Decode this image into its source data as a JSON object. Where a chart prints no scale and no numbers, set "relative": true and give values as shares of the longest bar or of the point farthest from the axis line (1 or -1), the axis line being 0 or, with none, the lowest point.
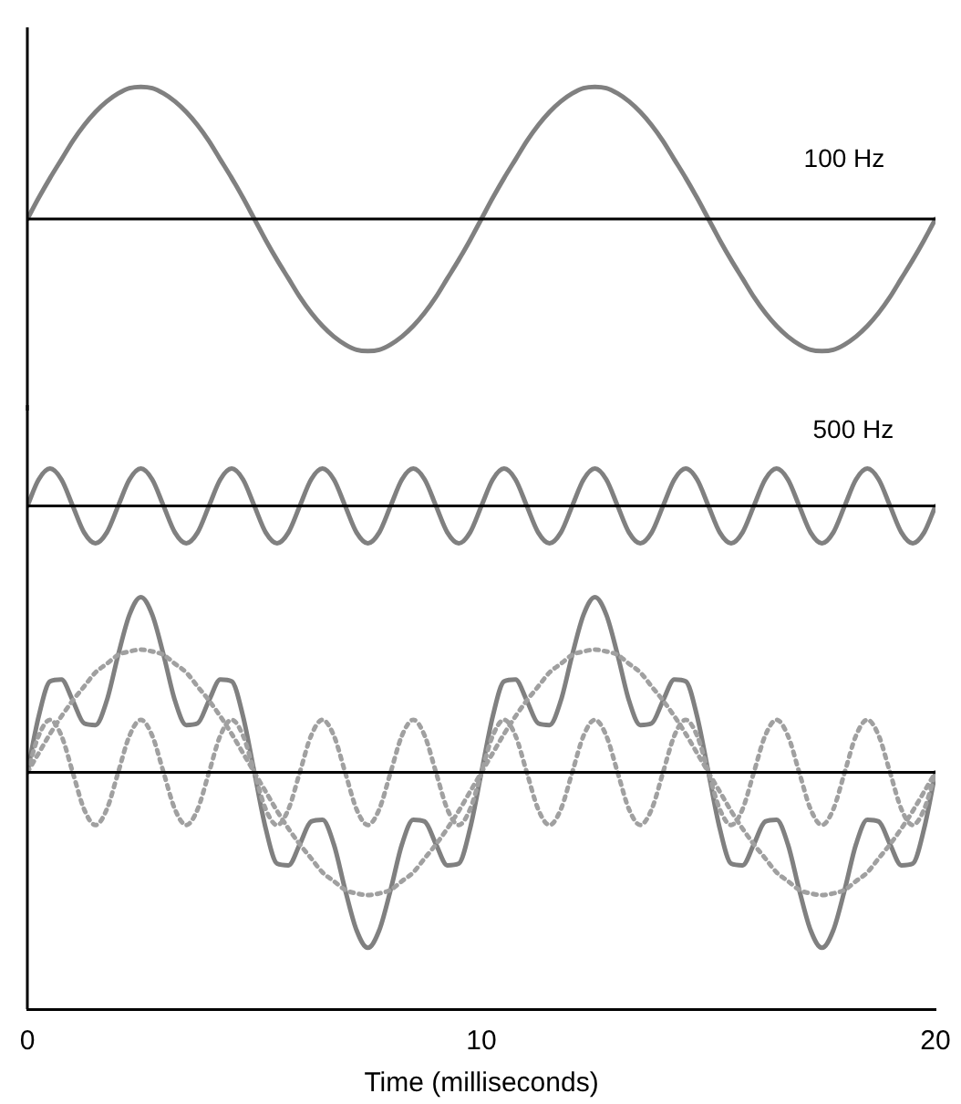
{
  "chart_data": [
    {
      "type": "line",
      "relative": true,
      "marker": "none",
      "tick_labels": false,
      "xlim": [
        0,
        20
      ],
      "x": [
        0,
        0.25,
        0.5,
        0.75,
        1,
        1.25,
        1.5,
        1.75,
        2,
        2.25,
        2.5,
        2.75,
        3,
        3.25,
        3.5,
        3.75,
        4,
        4.25,
        4.5,
        4.75,
        5,
        5.25,
        5.5,
        5.75,
        6,
        6.25,
        6.5,
        6.75,
        7,
        7.25,
        7.5,
        7.75,
        8,
        8.25,
        8.5,
        8.75,
        9,
        9.25,
        9.5,
        9.75,
        10,
        10.25,
        10.5,
        10.75,
        11,
        11.25,
        11.5,
        11.75,
        12,
        12.25,
        12.5,
        12.75,
        13,
        13.25,
        13.5,
        13.75,
        14,
        14.25,
        14.5,
        14.75,
        15,
        15.25,
        15.5,
        15.75,
        16,
        16.25,
        16.5,
        16.75,
        17,
        17.25,
        17.5,
        17.75,
        18,
        18.25,
        18.5,
        18.75,
        19,
        19.25,
        19.5,
        19.75,
        20
      ],
      "series": [
        {
          "name": "100 Hz",
          "color": "#808080",
          "values": [
            0,
            0.16,
            0.31,
            0.45,
            0.59,
            0.71,
            0.81,
            0.89,
            0.95,
            0.99,
            1,
            0.99,
            0.95,
            0.89,
            0.81,
            0.71,
            0.59,
            0.45,
            0.31,
            0.16,
            0,
            -0.16,
            -0.31,
            -0.45,
            -0.59,
            -0.71,
            -0.81,
            -0.89,
            -0.95,
            -0.99,
            -1,
            -0.99,
            -0.95,
            -0.89,
            -0.81,
            -0.71,
            -0.59,
            -0.45,
            -0.31,
            -0.16,
            0,
            0.16,
            0.31,
            0.45,
            0.59,
            0.71,
            0.81,
            0.89,
            0.95,
            0.99,
            1,
            0.99,
            0.95,
            0.89,
            0.81,
            0.71,
            0.59,
            0.45,
            0.31,
            0.16,
            0,
            -0.16,
            -0.31,
            -0.45,
            -0.59,
            -0.71,
            -0.81,
            -0.89,
            -0.95,
            -0.99,
            -1,
            -0.99,
            -0.95,
            -0.89,
            -0.81,
            -0.71,
            -0.59,
            -0.45,
            -0.31,
            -0.16,
            0
          ]
        }
      ]
    },
    {
      "type": "line",
      "relative": true,
      "marker": "none",
      "tick_labels": false,
      "xlim": [
        0,
        20
      ],
      "x": [
        0,
        0.25,
        0.5,
        0.75,
        1,
        1.25,
        1.5,
        1.75,
        2,
        2.25,
        2.5,
        2.75,
        3,
        3.25,
        3.5,
        3.75,
        4,
        4.25,
        4.5,
        4.75,
        5,
        5.25,
        5.5,
        5.75,
        6,
        6.25,
        6.5,
        6.75,
        7,
        7.25,
        7.5,
        7.75,
        8,
        8.25,
        8.5,
        8.75,
        9,
        9.25,
        9.5,
        9.75,
        10,
        10.25,
        10.5,
        10.75,
        11,
        11.25,
        11.5,
        11.75,
        12,
        12.25,
        12.5,
        12.75,
        13,
        13.25,
        13.5,
        13.75,
        14,
        14.25,
        14.5,
        14.75,
        15,
        15.25,
        15.5,
        15.75,
        16,
        16.25,
        16.5,
        16.75,
        17,
        17.25,
        17.5,
        17.75,
        18,
        18.25,
        18.5,
        18.75,
        19,
        19.25,
        19.5,
        19.75,
        20
      ],
      "series": [
        {
          "name": "500 Hz",
          "color": "#808080",
          "values": [
            0,
            0.71,
            1,
            0.71,
            0,
            -0.71,
            -1,
            -0.71,
            0,
            0.71,
            1,
            0.71,
            0,
            -0.71,
            -1,
            -0.71,
            0,
            0.71,
            1,
            0.71,
            0,
            -0.71,
            -1,
            -0.71,
            0,
            0.71,
            1,
            0.71,
            0,
            -0.71,
            -1,
            -0.71,
            0,
            0.71,
            1,
            0.71,
            0,
            -0.71,
            -1,
            -0.71,
            0,
            0.71,
            1,
            0.71,
            0,
            -0.71,
            -1,
            -0.71,
            0,
            0.71,
            1,
            0.71,
            0,
            -0.71,
            -1,
            -0.71,
            0,
            0.71,
            1,
            0.71,
            0,
            -0.71,
            -1,
            -0.71,
            0,
            0.71,
            1,
            0.71,
            0,
            -0.71,
            -1,
            -0.71,
            0,
            0.71,
            1,
            0.71,
            0,
            -0.71,
            -1,
            -0.71,
            0
          ]
        }
      ]
    },
    {
      "type": "line",
      "relative": true,
      "marker": "none",
      "tick_labels": "x",
      "xlim": [
        0,
        20
      ],
      "xticks": [
        0,
        10,
        20
      ],
      "xlabel": "Time (milliseconds)",
      "x": [
        0,
        0.25,
        0.5,
        0.75,
        1,
        1.25,
        1.5,
        1.75,
        2,
        2.25,
        2.5,
        2.75,
        3,
        3.25,
        3.5,
        3.75,
        4,
        4.25,
        4.5,
        4.75,
        5,
        5.25,
        5.5,
        5.75,
        6,
        6.25,
        6.5,
        6.75,
        7,
        7.25,
        7.5,
        7.75,
        8,
        8.25,
        8.5,
        8.75,
        9,
        9.25,
        9.5,
        9.75,
        10,
        10.25,
        10.5,
        10.75,
        11,
        11.25,
        11.5,
        11.75,
        12,
        12.25,
        12.5,
        12.75,
        13,
        13.25,
        13.5,
        13.75,
        14,
        14.25,
        14.5,
        14.75,
        15,
        15.25,
        15.5,
        15.75,
        16,
        16.25,
        16.5,
        16.75,
        17,
        17.25,
        17.5,
        17.75,
        18,
        18.25,
        18.5,
        18.75,
        19,
        19.25,
        19.5,
        19.75,
        20
      ],
      "series": [
        {
          "color": "#a0a0a0",
          "line_style": "dotted",
          "values": [
            0,
            0.11,
            0.22,
            0.32,
            0.41,
            0.49,
            0.57,
            0.62,
            0.67,
            0.69,
            0.7,
            0.69,
            0.67,
            0.62,
            0.57,
            0.49,
            0.41,
            0.32,
            0.22,
            0.11,
            0,
            -0.11,
            -0.22,
            -0.32,
            -0.41,
            -0.49,
            -0.57,
            -0.62,
            -0.67,
            -0.69,
            -0.7,
            -0.69,
            -0.67,
            -0.62,
            -0.57,
            -0.49,
            -0.41,
            -0.32,
            -0.22,
            -0.11,
            0,
            0.11,
            0.22,
            0.32,
            0.41,
            0.49,
            0.57,
            0.62,
            0.67,
            0.69,
            0.7,
            0.69,
            0.67,
            0.62,
            0.57,
            0.49,
            0.41,
            0.32,
            0.22,
            0.11,
            0,
            -0.11,
            -0.22,
            -0.32,
            -0.41,
            -0.49,
            -0.57,
            -0.62,
            -0.67,
            -0.69,
            -0.7,
            -0.69,
            -0.67,
            -0.62,
            -0.57,
            -0.49,
            -0.41,
            -0.32,
            -0.22,
            -0.11,
            0
          ]
        },
        {
          "color": "#a0a0a0",
          "line_style": "dotted",
          "values": [
            0,
            0.21,
            0.3,
            0.21,
            0,
            -0.21,
            -0.3,
            -0.21,
            0,
            0.21,
            0.3,
            0.21,
            0,
            -0.21,
            -0.3,
            -0.21,
            0,
            0.21,
            0.3,
            0.21,
            0,
            -0.21,
            -0.3,
            -0.21,
            0,
            0.21,
            0.3,
            0.21,
            0,
            -0.21,
            -0.3,
            -0.21,
            0,
            0.21,
            0.3,
            0.21,
            0,
            -0.21,
            -0.3,
            -0.21,
            0,
            0.21,
            0.3,
            0.21,
            0,
            -0.21,
            -0.3,
            -0.21,
            0,
            0.21,
            0.3,
            0.21,
            0,
            -0.21,
            -0.3,
            -0.21,
            0,
            0.21,
            0.3,
            0.21,
            0,
            -0.21,
            -0.3,
            -0.21,
            0,
            0.21,
            0.3,
            0.21,
            0,
            -0.21,
            -0.3,
            -0.21,
            0,
            0.21,
            0.3,
            0.21,
            0,
            -0.21,
            -0.3,
            -0.21,
            0
          ]
        },
        {
          "color": "#808080",
          "line_style": "solid",
          "values": [
            0,
            0.32,
            0.52,
            0.53,
            0.41,
            0.28,
            0.27,
            0.41,
            0.67,
            0.9,
            1,
            0.9,
            0.67,
            0.41,
            0.27,
            0.28,
            0.41,
            0.53,
            0.52,
            0.32,
            0,
            -0.32,
            -0.52,
            -0.53,
            -0.41,
            -0.28,
            -0.27,
            -0.41,
            -0.67,
            -0.9,
            -1,
            -0.9,
            -0.67,
            -0.41,
            -0.27,
            -0.28,
            -0.41,
            -0.53,
            -0.52,
            -0.32,
            0,
            0.32,
            0.52,
            0.53,
            0.41,
            0.28,
            0.27,
            0.41,
            0.67,
            0.9,
            1,
            0.9,
            0.67,
            0.41,
            0.27,
            0.28,
            0.41,
            0.53,
            0.52,
            0.32,
            0,
            -0.32,
            -0.52,
            -0.53,
            -0.41,
            -0.28,
            -0.27,
            -0.41,
            -0.67,
            -0.9,
            -1,
            -0.9,
            -0.67,
            -0.41,
            -0.27,
            -0.28,
            -0.41,
            -0.53,
            -0.52,
            -0.32,
            0
          ]
        }
      ]
    }
  ]
}
